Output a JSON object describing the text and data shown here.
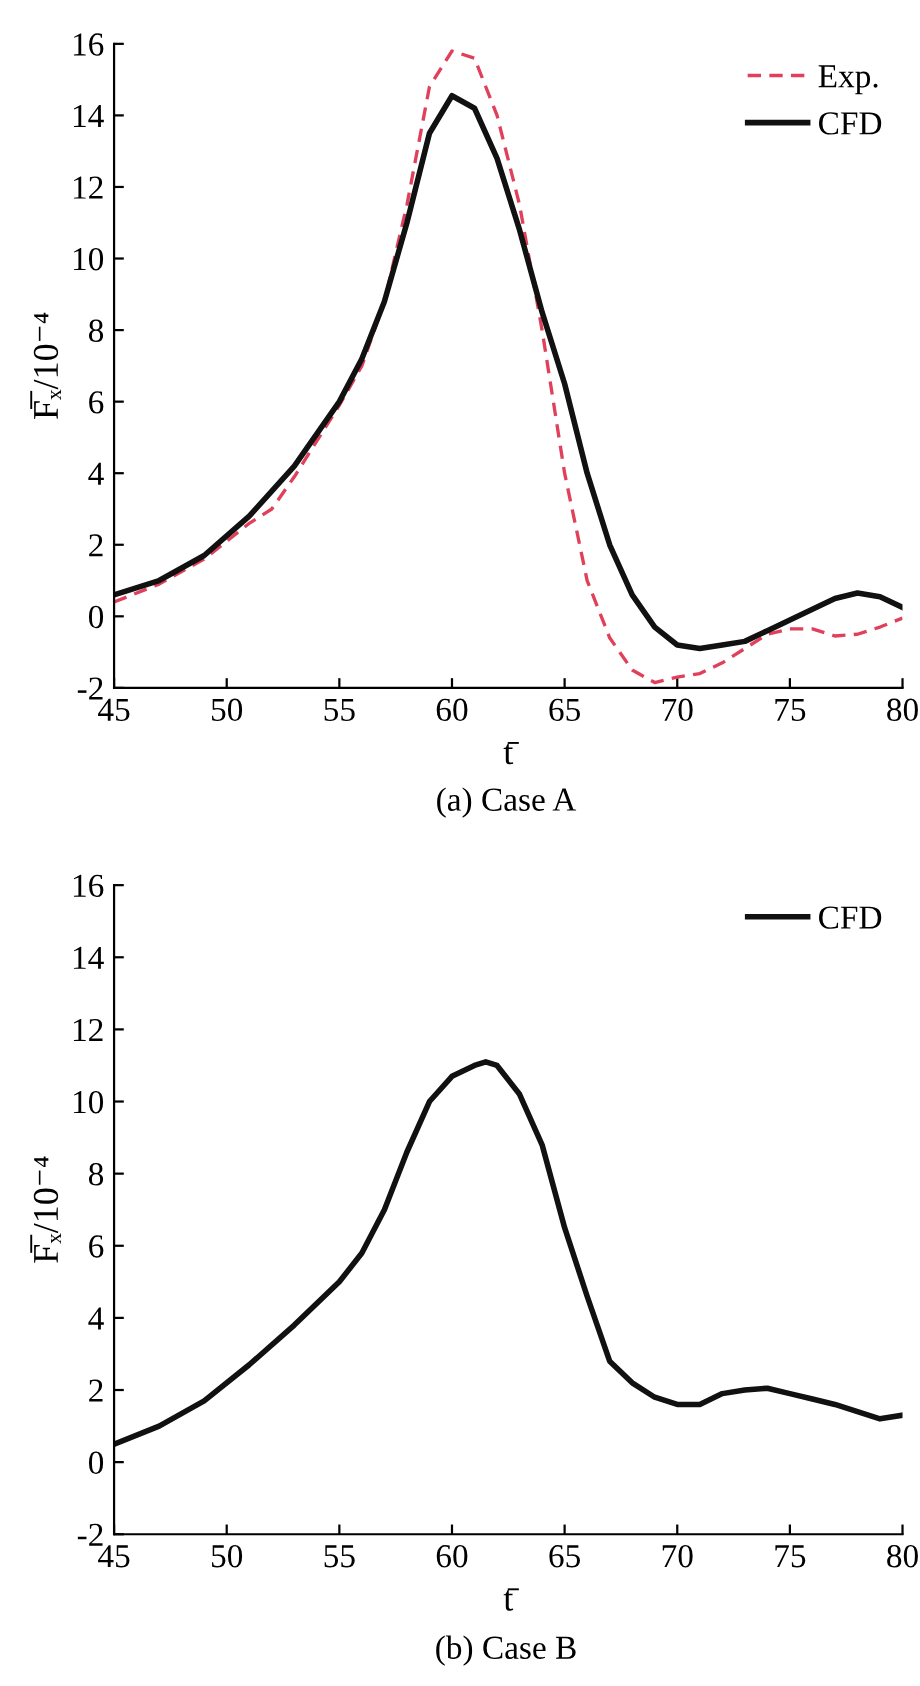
{
  "chart_data": [
    {
      "type": "line",
      "xlabel": "t̄",
      "ylabel": "F̅ₓ/10⁻⁴",
      "xlim": [
        45,
        80
      ],
      "ylim": [
        -2,
        16
      ],
      "xticks": [
        45,
        50,
        55,
        60,
        65,
        70,
        75,
        80
      ],
      "yticks": [
        -2,
        0,
        2,
        4,
        6,
        8,
        10,
        12,
        14,
        16
      ],
      "grid": false,
      "legend": "top right",
      "annotations": [
        "(a) Case A"
      ],
      "series": [
        {
          "name": "Exp.",
          "color": "#e0405a",
          "line_style": "dashed",
          "x": [
            45,
            47,
            49,
            51,
            52,
            53,
            55,
            56,
            57,
            58,
            59,
            60,
            61,
            62,
            63,
            64,
            65,
            66,
            67,
            68,
            69,
            70,
            71,
            72,
            73,
            74,
            75,
            76,
            77,
            78,
            79,
            80
          ],
          "values": [
            0.4,
            0.9,
            1.6,
            2.6,
            3.0,
            3.9,
            5.9,
            7.0,
            8.8,
            11.5,
            14.8,
            15.8,
            15.6,
            14.0,
            11.5,
            8.0,
            4.0,
            1.0,
            -0.6,
            -1.5,
            -1.85,
            -1.7,
            -1.6,
            -1.3,
            -0.9,
            -0.5,
            -0.35,
            -0.35,
            -0.55,
            -0.5,
            -0.3,
            -0.05
          ]
        },
        {
          "name": "CFD",
          "color": "#111111",
          "line_style": "solid",
          "x": [
            45,
            47,
            49,
            51,
            53,
            55,
            56,
            57,
            58,
            59,
            60,
            61,
            62,
            63,
            64,
            65,
            66,
            67,
            68,
            69,
            70,
            71,
            72,
            73,
            74,
            75,
            76,
            77,
            78,
            79,
            80
          ],
          "values": [
            0.6,
            1.0,
            1.7,
            2.8,
            4.2,
            6.0,
            7.2,
            8.8,
            11.0,
            13.5,
            14.55,
            14.2,
            12.8,
            10.8,
            8.5,
            6.5,
            4.0,
            2.0,
            0.6,
            -0.3,
            -0.8,
            -0.9,
            -0.8,
            -0.7,
            -0.4,
            -0.1,
            0.2,
            0.5,
            0.65,
            0.55,
            0.25
          ]
        }
      ]
    },
    {
      "type": "line",
      "xlabel": "t̄",
      "ylabel": "F̅ₓ/10⁻⁴",
      "xlim": [
        45,
        80
      ],
      "ylim": [
        -2,
        16
      ],
      "xticks": [
        45,
        50,
        55,
        60,
        65,
        70,
        75,
        80
      ],
      "yticks": [
        -2,
        0,
        2,
        4,
        6,
        8,
        10,
        12,
        14,
        16
      ],
      "grid": false,
      "legend": "top right",
      "annotations": [
        "(b) Case B"
      ],
      "series": [
        {
          "name": "CFD",
          "color": "#111111",
          "line_style": "solid",
          "x": [
            45,
            47,
            49,
            51,
            53,
            55,
            56,
            57,
            58,
            59,
            60,
            61,
            61.5,
            62,
            63,
            64,
            65,
            66,
            67,
            68,
            69,
            70,
            71,
            72,
            73,
            74,
            75,
            76,
            77,
            78,
            79,
            80
          ],
          "values": [
            0.5,
            1.0,
            1.7,
            2.7,
            3.8,
            5.0,
            5.8,
            7.0,
            8.6,
            10.0,
            10.7,
            11.0,
            11.1,
            11.0,
            10.2,
            8.8,
            6.5,
            4.6,
            2.8,
            2.2,
            1.8,
            1.6,
            1.6,
            1.9,
            2.0,
            2.05,
            1.9,
            1.75,
            1.6,
            1.4,
            1.2,
            1.3
          ]
        }
      ]
    }
  ]
}
